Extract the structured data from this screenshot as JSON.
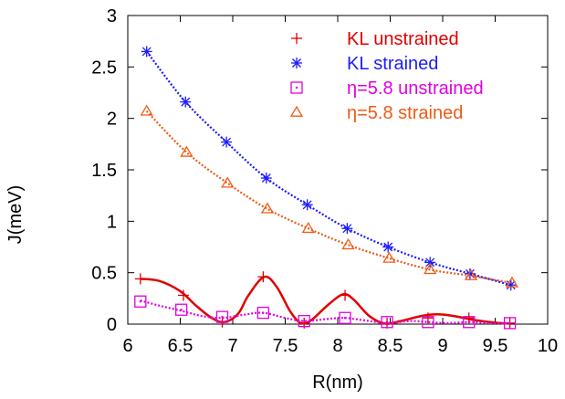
{
  "chart_data": {
    "type": "line",
    "xlabel": "R(nm)",
    "ylabel": "J(meV)",
    "xlim": [
      6,
      10
    ],
    "ylim": [
      0,
      3
    ],
    "xticks": [
      "6",
      "6.5",
      "7",
      "7.5",
      "8",
      "8.5",
      "9",
      "9.5",
      "10"
    ],
    "yticks": [
      "0",
      "0.5",
      "1",
      "1.5",
      "2",
      "2.5",
      "3"
    ],
    "grid": false,
    "legend_position": "top-right",
    "series": [
      {
        "name": "KL unstrained",
        "color": "#e00000",
        "marker": "plus",
        "line_style": "solid",
        "x": [
          6.12,
          6.53,
          6.9,
          7.29,
          7.68,
          8.07,
          8.47,
          8.86,
          9.25,
          9.64
        ],
        "y": [
          0.44,
          0.28,
          0.02,
          0.46,
          0.01,
          0.28,
          0.01,
          0.06,
          0.06,
          0.01
        ],
        "curve": [
          [
            6.12,
            0.44
          ],
          [
            6.3,
            0.42
          ],
          [
            6.5,
            0.32
          ],
          [
            6.65,
            0.18
          ],
          [
            6.8,
            0.06
          ],
          [
            6.92,
            0.02
          ],
          [
            7.05,
            0.1
          ],
          [
            7.15,
            0.28
          ],
          [
            7.3,
            0.46
          ],
          [
            7.42,
            0.36
          ],
          [
            7.55,
            0.12
          ],
          [
            7.65,
            0.01
          ],
          [
            7.75,
            0.04
          ],
          [
            7.9,
            0.18
          ],
          [
            8.05,
            0.29
          ],
          [
            8.15,
            0.24
          ],
          [
            8.3,
            0.08
          ],
          [
            8.45,
            0.005
          ],
          [
            8.6,
            0.03
          ],
          [
            8.8,
            0.08
          ],
          [
            8.95,
            0.095
          ],
          [
            9.1,
            0.08
          ],
          [
            9.3,
            0.04
          ],
          [
            9.5,
            0.015
          ],
          [
            9.64,
            0.005
          ]
        ]
      },
      {
        "name": "KL strained",
        "color": "#1c1cff",
        "marker": "asterisk",
        "line_style": "dotted",
        "x": [
          6.18,
          6.55,
          6.94,
          7.32,
          7.71,
          8.09,
          8.48,
          8.88,
          9.26,
          9.65
        ],
        "y": [
          2.65,
          2.16,
          1.77,
          1.42,
          1.16,
          0.93,
          0.75,
          0.6,
          0.49,
          0.38
        ],
        "curve": [
          [
            6.18,
            2.65
          ],
          [
            6.55,
            2.16
          ],
          [
            6.94,
            1.77
          ],
          [
            7.32,
            1.42
          ],
          [
            7.71,
            1.16
          ],
          [
            8.09,
            0.93
          ],
          [
            8.48,
            0.75
          ],
          [
            8.88,
            0.6
          ],
          [
            9.26,
            0.49
          ],
          [
            9.65,
            0.38
          ]
        ]
      },
      {
        "name": "η=5.8 unstrained",
        "color": "#e000e0",
        "marker": "square-dot",
        "line_style": "dotted",
        "x": [
          6.12,
          6.51,
          6.9,
          7.29,
          7.68,
          8.07,
          8.47,
          8.86,
          9.25,
          9.64
        ],
        "y": [
          0.22,
          0.14,
          0.07,
          0.11,
          0.03,
          0.06,
          0.02,
          0.02,
          0.02,
          0.01
        ],
        "curve": [
          [
            6.12,
            0.23
          ],
          [
            6.3,
            0.18
          ],
          [
            6.51,
            0.13
          ],
          [
            6.7,
            0.08
          ],
          [
            6.9,
            0.06
          ],
          [
            7.1,
            0.09
          ],
          [
            7.29,
            0.11
          ],
          [
            7.5,
            0.06
          ],
          [
            7.68,
            0.03
          ],
          [
            7.9,
            0.05
          ],
          [
            8.07,
            0.06
          ],
          [
            8.3,
            0.03
          ],
          [
            8.47,
            0.01
          ],
          [
            8.7,
            0.03
          ],
          [
            8.86,
            0.02
          ],
          [
            9.05,
            0.01
          ],
          [
            9.25,
            0.02
          ],
          [
            9.45,
            0.01
          ],
          [
            9.64,
            0.005
          ]
        ]
      },
      {
        "name": "η=5.8 strained",
        "color": "#f05a14",
        "marker": "triangle",
        "line_style": "dotted",
        "x": [
          6.18,
          6.56,
          6.95,
          7.33,
          7.72,
          8.1,
          8.49,
          8.88,
          9.27,
          9.66
        ],
        "y": [
          2.07,
          1.67,
          1.37,
          1.12,
          0.93,
          0.77,
          0.64,
          0.53,
          0.47,
          0.4
        ],
        "curve": [
          [
            6.18,
            2.07
          ],
          [
            6.56,
            1.67
          ],
          [
            6.95,
            1.37
          ],
          [
            7.33,
            1.12
          ],
          [
            7.72,
            0.93
          ],
          [
            8.1,
            0.77
          ],
          [
            8.49,
            0.64
          ],
          [
            8.88,
            0.53
          ],
          [
            9.27,
            0.47
          ],
          [
            9.66,
            0.4
          ]
        ]
      }
    ]
  }
}
